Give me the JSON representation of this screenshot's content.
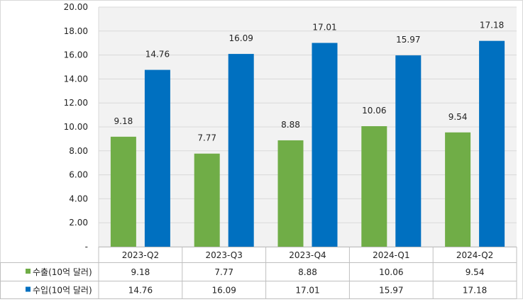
{
  "chart_data": {
    "type": "bar",
    "categories": [
      "2023-Q2",
      "2023-Q3",
      "2023-Q4",
      "2024-Q1",
      "2024-Q2"
    ],
    "series": [
      {
        "name": "수출(10억 달러)",
        "values": [
          9.18,
          7.77,
          8.88,
          10.06,
          9.54
        ],
        "color": "#70AD47"
      },
      {
        "name": "수입(10억 달러)",
        "values": [
          14.76,
          16.09,
          17.01,
          15.97,
          17.18
        ],
        "color": "#0070C0"
      }
    ],
    "ylim": [
      0,
      20
    ],
    "yticks": [
      "-",
      "2.00",
      "4.00",
      "6.00",
      "8.00",
      "10.00",
      "12.00",
      "14.00",
      "16.00",
      "18.00",
      "20.00"
    ],
    "data_labels": true,
    "data_table": true,
    "grid": true,
    "title": "",
    "xlabel": "",
    "ylabel": ""
  }
}
